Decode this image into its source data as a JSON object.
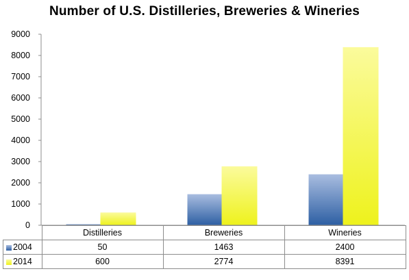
{
  "chart_data": {
    "type": "bar",
    "title": "Number of U.S. Distilleries, Breweries & Wineries",
    "xlabel": "",
    "ylabel": "",
    "categories": [
      "Distilleries",
      "Breweries",
      "Wineries"
    ],
    "series": [
      {
        "name": "2004",
        "values": [
          50,
          1463,
          2400
        ],
        "color_top": "#a9bde0",
        "color_bottom": "#2d5fa3"
      },
      {
        "name": "2014",
        "values": [
          600,
          2774,
          8391
        ],
        "color_top": "#fbfb9c",
        "color_bottom": "#eef21c"
      }
    ],
    "ylim": [
      0,
      9000
    ],
    "yticks": [
      "0",
      "1000",
      "2000",
      "3000",
      "4000",
      "5000",
      "6000",
      "7000",
      "8000",
      "9000"
    ],
    "grid": false,
    "legend": "data-table"
  }
}
